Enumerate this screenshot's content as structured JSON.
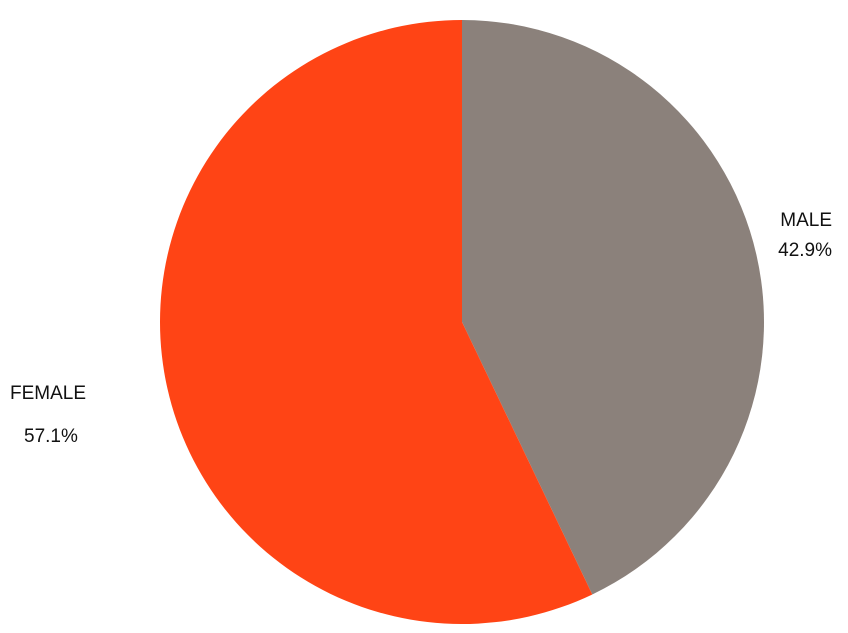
{
  "chart_data": {
    "type": "pie",
    "slices": [
      {
        "label": "MALE",
        "value": 42.9,
        "value_label": "42.9%",
        "color": "#8b817b"
      },
      {
        "label": "FEMALE",
        "value": 57.1,
        "value_label": "57.1%",
        "color": "#ff4415"
      }
    ],
    "start": "12 o'clock",
    "direction": "clockwise",
    "legend": "none",
    "labels": "outside"
  }
}
